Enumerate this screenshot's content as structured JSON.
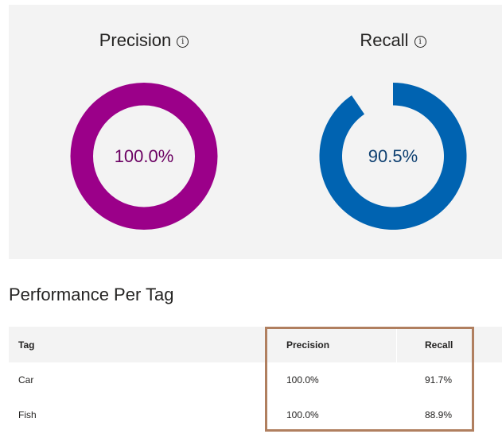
{
  "summary": {
    "precision": {
      "title": "Precision",
      "value_label": "100.0%",
      "fraction": 1.0,
      "color": "#9b0089",
      "text_color": "#6b0062"
    },
    "recall": {
      "title": "Recall",
      "value_label": "90.5%",
      "fraction": 0.905,
      "color": "#0063b1",
      "text_color": "#0e4071"
    },
    "info_glyph": "i"
  },
  "performance": {
    "heading": "Performance Per Tag",
    "columns": {
      "tag": "Tag",
      "precision": "Precision",
      "recall": "Recall"
    },
    "rows": [
      {
        "tag": "Car",
        "precision": "100.0%",
        "recall": "91.7%"
      },
      {
        "tag": "Fish",
        "precision": "100.0%",
        "recall": "88.9%"
      }
    ],
    "highlight_color": "#b07f5f"
  }
}
